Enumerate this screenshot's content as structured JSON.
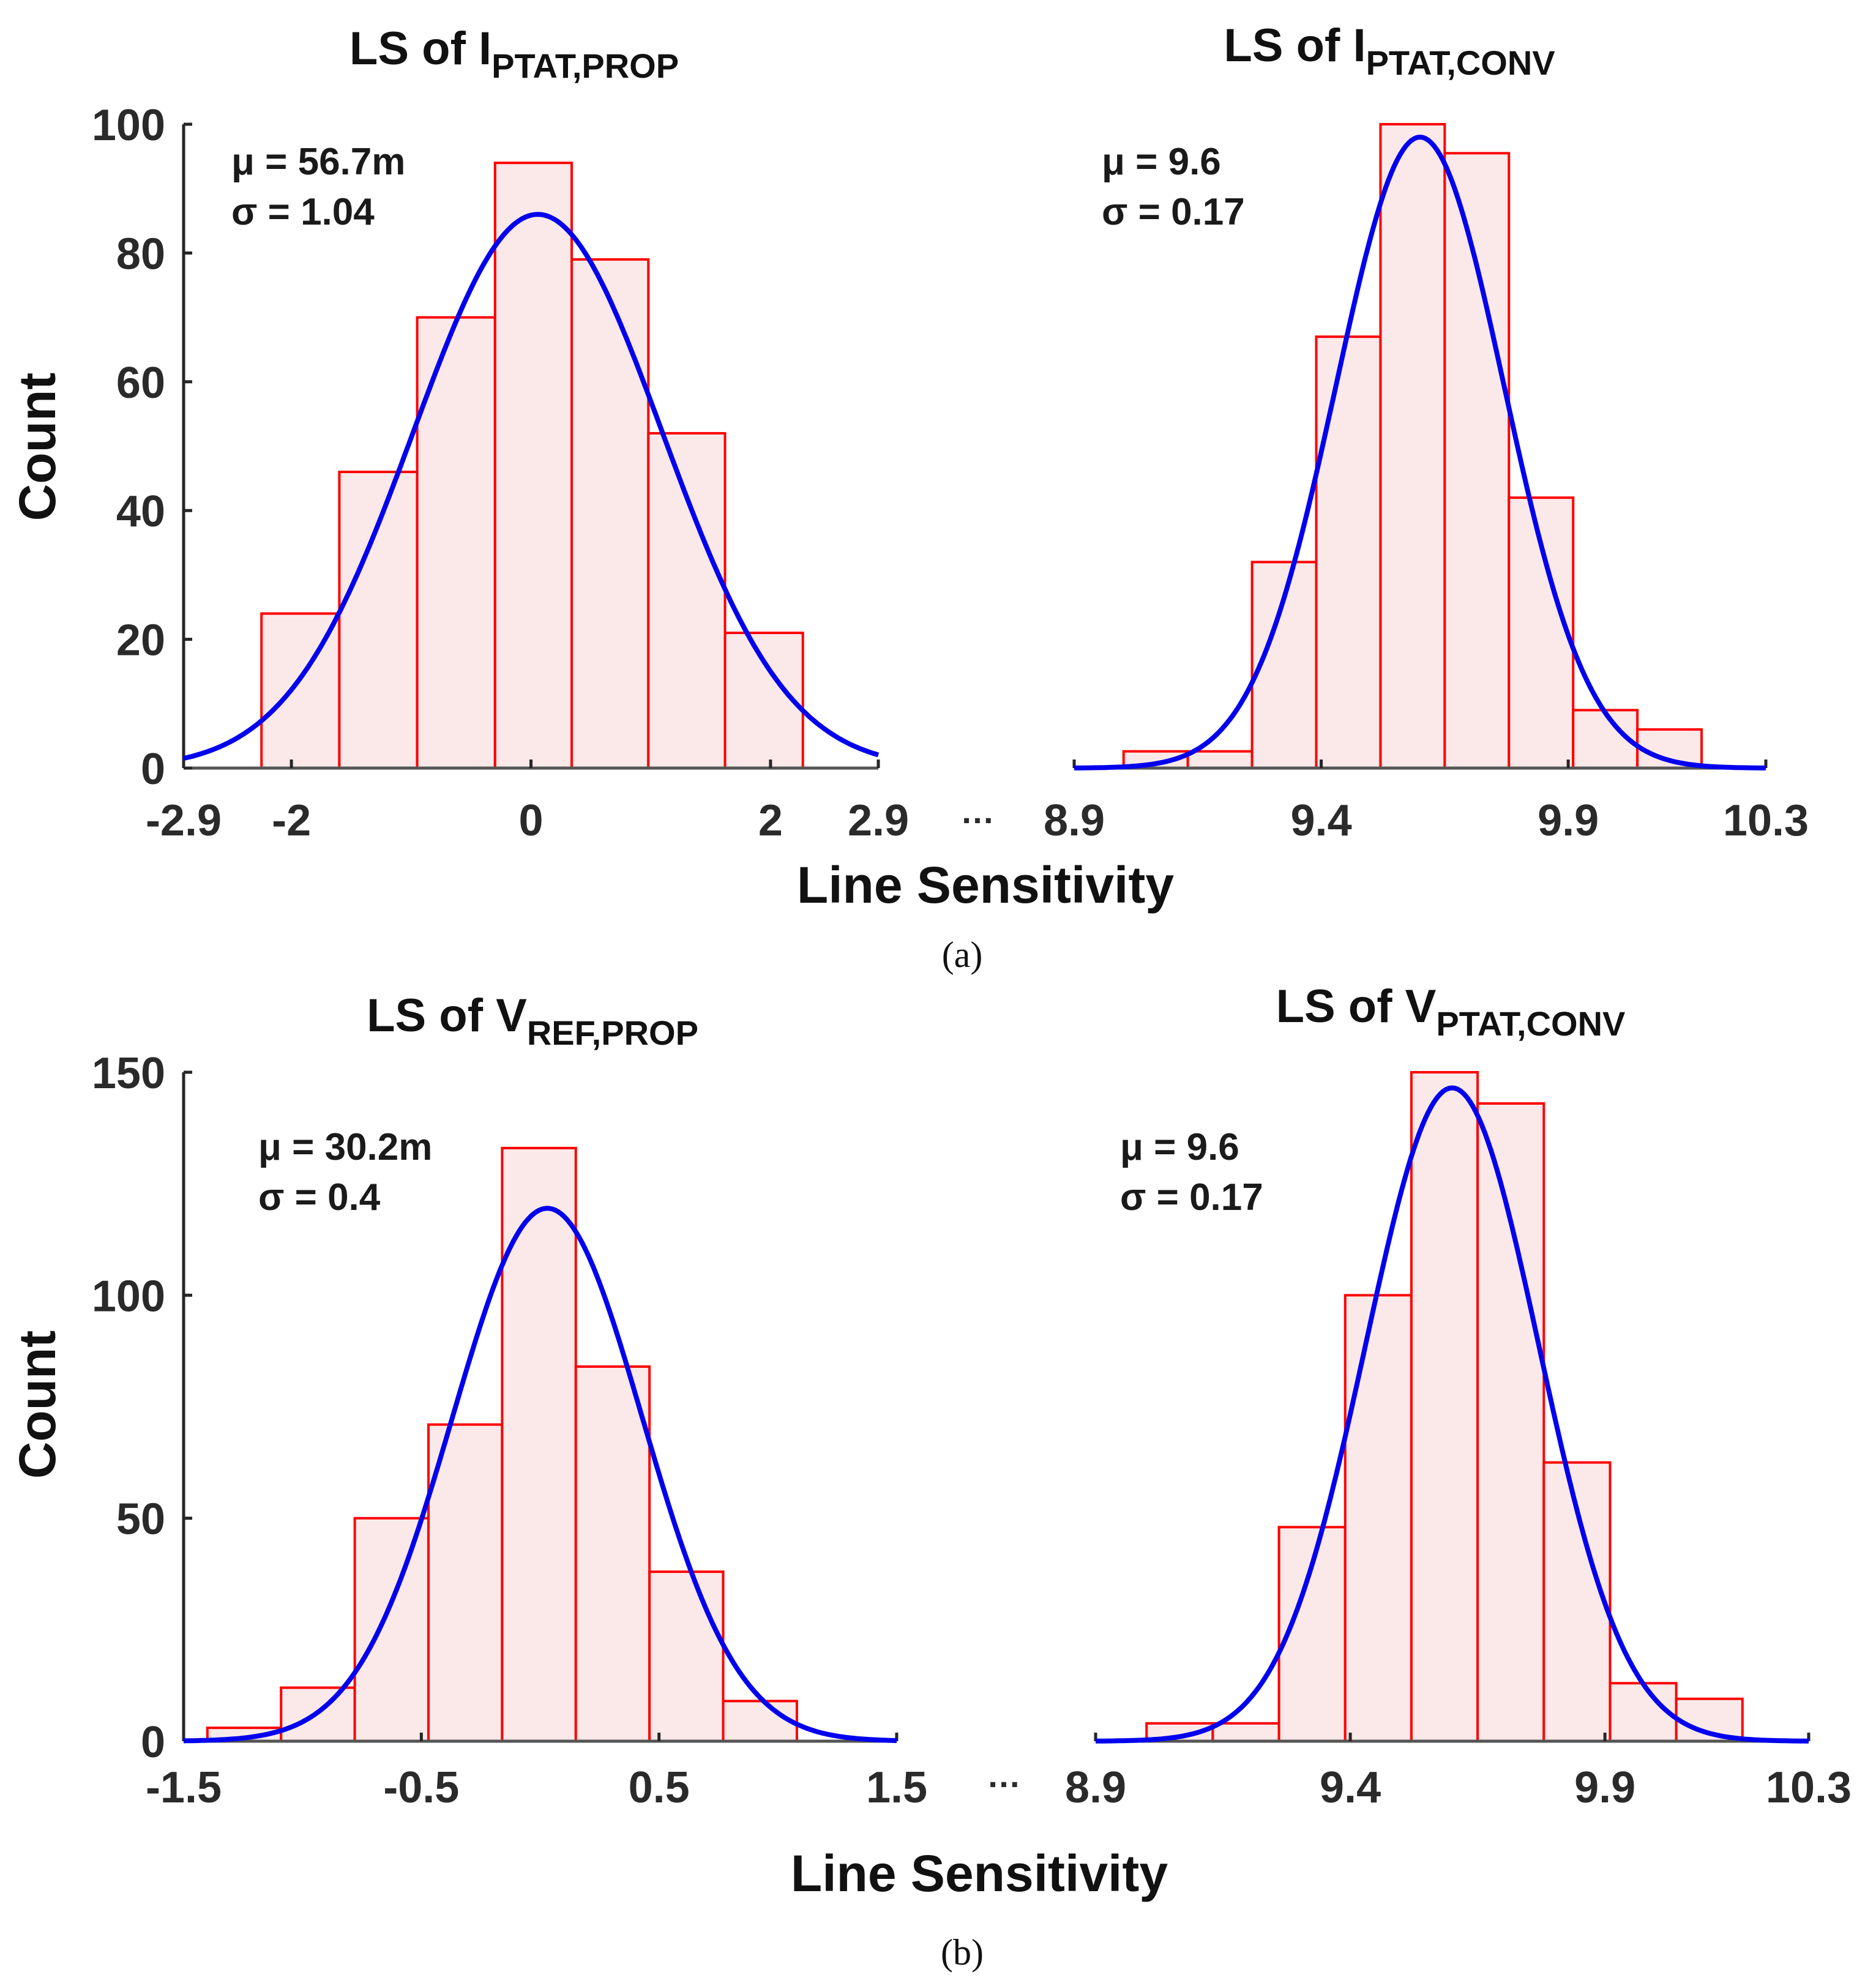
{
  "colors": {
    "bar_fill": "#fbe9ea",
    "bar_edge": "#ff0000",
    "fit_curve": "#0000ee",
    "axis": "#262626",
    "baseline": "#555555"
  },
  "shared": {
    "ylabel": "Count",
    "xlabel": "Line Sensitivity",
    "ellipsis": "…"
  },
  "captions": [
    "(a)",
    "(b)"
  ],
  "chart_data": [
    {
      "type": "bar",
      "group": "a",
      "title": "LS of I",
      "title_sub": "PTAT,PROP",
      "xlabel": "Line Sensitivity",
      "ylabel": "Count",
      "xlim": [
        -2.9,
        2.9
      ],
      "ylim": [
        0,
        100
      ],
      "yticks": [
        0,
        20,
        40,
        60,
        80,
        100
      ],
      "xticks": [
        -2.9,
        -2,
        0,
        2,
        2.9
      ],
      "xtick_labels": [
        "-2.9",
        "-2",
        "0",
        "2",
        "2.9"
      ],
      "bin_edges": [
        -2.25,
        -1.6,
        -0.95,
        -0.3,
        0.34,
        0.98,
        1.62,
        2.27
      ],
      "values": [
        24,
        46,
        70,
        94,
        79,
        52,
        21
      ],
      "fit": {
        "mean": 0.0567,
        "sigma": 1.04,
        "peak": 86
      },
      "stats": {
        "mu": "μ = 56.7m",
        "sigma": "σ = 1.04"
      }
    },
    {
      "type": "bar",
      "group": "a",
      "title": "LS of I",
      "title_sub": "PTAT,CONV",
      "xlabel": "Line Sensitivity",
      "ylabel": "Count",
      "xlim": [
        8.9,
        10.3
      ],
      "ylim": [
        0,
        100
      ],
      "xticks": [
        8.9,
        9.4,
        9.9,
        10.3
      ],
      "xtick_labels": [
        "8.9",
        "9.4",
        "9.9",
        "10.3"
      ],
      "bin_edges": [
        9.0,
        9.13,
        9.26,
        9.39,
        9.52,
        9.65,
        9.78,
        9.91,
        10.04,
        10.17
      ],
      "values": [
        2.6,
        2.6,
        32,
        67,
        100,
        95.5,
        42,
        9,
        6
      ],
      "fit": {
        "mean": 9.6,
        "sigma": 0.17,
        "peak": 98
      },
      "stats": {
        "mu": "μ = 9.6",
        "sigma": "σ = 0.17"
      }
    },
    {
      "type": "bar",
      "group": "b",
      "title": "LS of V",
      "title_sub": "REF,PROP",
      "xlabel": "Line Sensitivity",
      "ylabel": "Count",
      "xlim": [
        -1.5,
        1.5
      ],
      "ylim": [
        0,
        150
      ],
      "yticks": [
        0,
        50,
        100,
        150
      ],
      "xticks": [
        -1.5,
        -0.5,
        0.5,
        1.5
      ],
      "xtick_labels": [
        "-1.5",
        "-0.5",
        "0.5",
        "1.5"
      ],
      "bin_edges": [
        -1.4,
        -1.09,
        -0.78,
        -0.47,
        -0.16,
        0.15,
        0.46,
        0.77,
        1.08
      ],
      "values": [
        3,
        12,
        50,
        71,
        133,
        84,
        38,
        9
      ],
      "fit": {
        "mean": 0.0302,
        "sigma": 0.4,
        "peak": 119.5
      },
      "stats": {
        "mu": "μ = 30.2m",
        "sigma": "σ = 0.4"
      }
    },
    {
      "type": "bar",
      "group": "b",
      "title": "LS of V",
      "title_sub": "PTAT,CONV",
      "xlabel": "Line Sensitivity",
      "ylabel": "Count",
      "xlim": [
        8.9,
        10.3
      ],
      "ylim": [
        0,
        150
      ],
      "xticks": [
        8.9,
        9.4,
        9.9,
        10.3
      ],
      "xtick_labels": [
        "8.9",
        "9.4",
        "9.9",
        "10.3"
      ],
      "bin_edges": [
        9.0,
        9.13,
        9.26,
        9.39,
        9.52,
        9.65,
        9.78,
        9.91,
        10.04,
        10.17
      ],
      "values": [
        4,
        4,
        48,
        100,
        150,
        143,
        62.5,
        13,
        9.5
      ],
      "fit": {
        "mean": 9.6,
        "sigma": 0.17,
        "peak": 146.5
      },
      "stats": {
        "mu": "μ = 9.6",
        "sigma": "σ = 0.17"
      }
    }
  ]
}
